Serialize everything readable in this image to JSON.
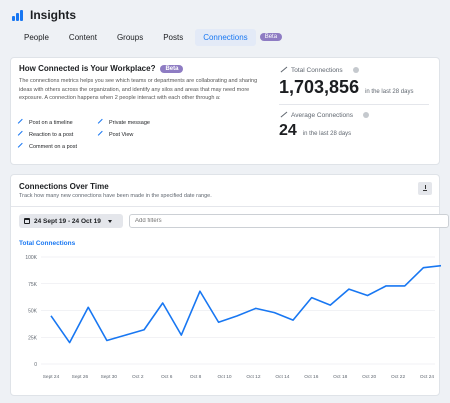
{
  "app": {
    "title": "Insights"
  },
  "tabs": [
    {
      "label": "People"
    },
    {
      "label": "Content"
    },
    {
      "label": "Groups"
    },
    {
      "label": "Posts"
    },
    {
      "label": "Connections"
    }
  ],
  "tab_badge": "Beta",
  "colors": {
    "accent": "#1877f2",
    "beta": "#8e7cc3"
  },
  "workplace": {
    "heading": "How Connected is Your Workplace?",
    "badge": "Beta",
    "description": "The connections metrics helps you see which teams or departments are collaborating and sharing ideas with others across the organization, and identify any silos and areas that may need more exposure. A connection happens when 2 people interact with each other through a:",
    "interactions": [
      {
        "label": "Post on a timeline",
        "icon": "trend-icon"
      },
      {
        "label": "Reaction to a post",
        "icon": "trend-icon"
      },
      {
        "label": "Comment on a post",
        "icon": "trend-icon"
      },
      {
        "label": "Private message",
        "icon": "trend-icon"
      },
      {
        "label": "Post View",
        "icon": "trend-icon"
      }
    ]
  },
  "stats": {
    "total": {
      "label": "Total Connections",
      "value": "1,703,856",
      "period": "in the last 28 days"
    },
    "average": {
      "label": "Average Connections",
      "value": "24",
      "period": "in the last 28 days"
    }
  },
  "over_time": {
    "title": "Connections Over Time",
    "subtitle": "Track how many new connections have been made in the specified date range.",
    "date_range": "24 Sept 19 - 24 Oct 19",
    "filter_placeholder": "Add filters",
    "series_label": "Total Connections"
  },
  "chart_data": {
    "type": "line",
    "title": "",
    "xlabel": "",
    "ylabel": "",
    "ylim": [
      0,
      100000
    ],
    "y_ticks": [
      "0",
      "25K",
      "50K",
      "75K",
      "100K"
    ],
    "x_ticks": [
      "Sept 24",
      "Sept 26",
      "Sept 30",
      "Oct 2",
      "Oct 6",
      "Oct 8",
      "Oct 10",
      "Oct 12",
      "Oct 14",
      "Oct 16",
      "Oct 18",
      "Oct 20",
      "Oct 22",
      "Oct 24"
    ],
    "grid": true,
    "series": [
      {
        "color": "#1877f2",
        "values": [
          45000,
          20000,
          53000,
          22000,
          27000,
          32000,
          57000,
          27000,
          68000,
          39000,
          45000,
          52000,
          48000,
          41000,
          62000,
          55000,
          70000,
          64000,
          73000,
          73000,
          90000,
          92000
        ]
      }
    ]
  }
}
